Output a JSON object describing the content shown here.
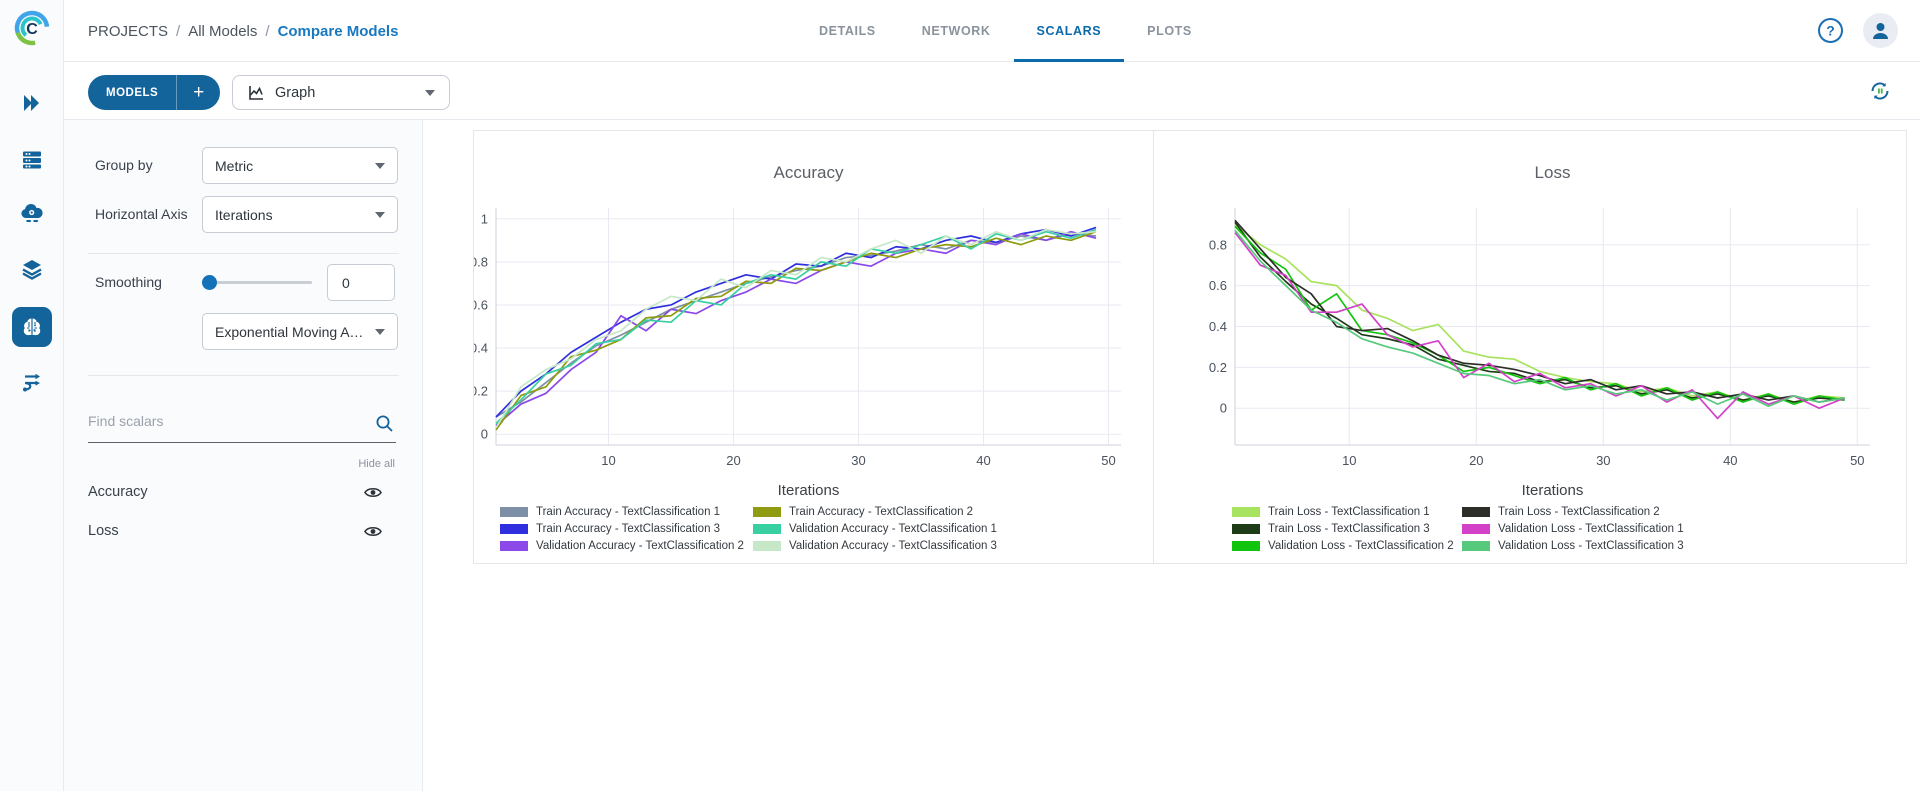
{
  "header": {
    "breadcrumb": [
      "PROJECTS",
      "All Models",
      "Compare Models"
    ],
    "tabs": [
      {
        "label": "DETAILS",
        "active": false
      },
      {
        "label": "NETWORK",
        "active": false
      },
      {
        "label": "SCALARS",
        "active": true
      },
      {
        "label": "PLOTS",
        "active": false
      }
    ]
  },
  "toolbar": {
    "models_label": "MODELS",
    "add_label": "+",
    "view_selector_value": "Graph"
  },
  "rail": {
    "icons": [
      "projects-icon",
      "datasets-icon",
      "pipelines-icon",
      "reports-icon",
      "models-icon",
      "workers-queues-icon"
    ],
    "active_icon": "models-icon"
  },
  "controls": {
    "group_by": {
      "label": "Group by",
      "value": "Metric"
    },
    "horizontal_axis": {
      "label": "Horizontal Axis",
      "value": "Iterations"
    },
    "smoothing": {
      "label": "Smoothing",
      "value": "0",
      "algorithm": "Exponential Moving Av..."
    },
    "find_scalars": {
      "placeholder": "Find scalars"
    },
    "hide_all_label": "Hide all",
    "scalars": [
      {
        "name": "Accuracy"
      },
      {
        "name": "Loss"
      }
    ]
  },
  "colors": {
    "accent_blue": "#14649c",
    "active_tab": "#0b6aa9",
    "breadcrumb_link": "#1879c0",
    "refresh_pause_green": "#4caf50"
  },
  "chart_data": [
    {
      "type": "line",
      "title": "Accuracy",
      "xlabel": "Iterations",
      "legend_position": "below, 2 columns",
      "grid": true,
      "xlim": [
        1,
        51
      ],
      "ylim": [
        -0.05,
        1.05
      ],
      "xticks": [
        10,
        20,
        30,
        40,
        50
      ],
      "yticks": [
        0,
        0.2,
        0.4,
        0.6,
        0.8,
        1
      ],
      "x": [
        1,
        3,
        5,
        7,
        9,
        11,
        13,
        15,
        17,
        19,
        21,
        23,
        25,
        27,
        29,
        31,
        33,
        35,
        37,
        39,
        41,
        43,
        45,
        47,
        49
      ],
      "series": [
        {
          "name": "Train Accuracy - TextClassification 1",
          "color": "#7d90a5",
          "values": [
            0.08,
            0.15,
            0.24,
            0.33,
            0.41,
            0.46,
            0.52,
            0.58,
            0.62,
            0.66,
            0.7,
            0.73,
            0.76,
            0.78,
            0.82,
            0.83,
            0.85,
            0.88,
            0.86,
            0.9,
            0.89,
            0.92,
            0.9,
            0.93,
            0.92
          ]
        },
        {
          "name": "Train Accuracy - TextClassification 3",
          "color": "#2f2fe0",
          "values": [
            0.08,
            0.2,
            0.28,
            0.38,
            0.45,
            0.52,
            0.58,
            0.6,
            0.66,
            0.7,
            0.74,
            0.72,
            0.79,
            0.78,
            0.84,
            0.82,
            0.87,
            0.86,
            0.9,
            0.92,
            0.89,
            0.93,
            0.95,
            0.92,
            0.96
          ]
        },
        {
          "name": "Validation Accuracy - TextClassification 2",
          "color": "#8a49e8",
          "values": [
            0.04,
            0.14,
            0.19,
            0.3,
            0.38,
            0.55,
            0.48,
            0.58,
            0.56,
            0.62,
            0.66,
            0.72,
            0.7,
            0.76,
            0.8,
            0.78,
            0.84,
            0.86,
            0.84,
            0.9,
            0.88,
            0.93,
            0.9,
            0.94,
            0.91
          ]
        },
        {
          "name": "Train Accuracy - TextClassification 2",
          "color": "#8f9c10",
          "values": [
            0.02,
            0.18,
            0.22,
            0.36,
            0.39,
            0.44,
            0.54,
            0.55,
            0.63,
            0.64,
            0.71,
            0.7,
            0.77,
            0.76,
            0.8,
            0.84,
            0.82,
            0.86,
            0.88,
            0.87,
            0.91,
            0.88,
            0.92,
            0.9,
            0.94
          ]
        },
        {
          "name": "Validation Accuracy - TextClassification 1",
          "color": "#38d0a2",
          "values": [
            0.05,
            0.16,
            0.28,
            0.32,
            0.42,
            0.44,
            0.53,
            0.52,
            0.62,
            0.6,
            0.7,
            0.74,
            0.72,
            0.8,
            0.78,
            0.86,
            0.84,
            0.88,
            0.92,
            0.86,
            0.93,
            0.9,
            0.94,
            0.91,
            0.95
          ]
        },
        {
          "name": "Validation Accuracy - TextClassification 3",
          "color": "#c6e8c8",
          "values": [
            0.03,
            0.22,
            0.3,
            0.35,
            0.44,
            0.48,
            0.58,
            0.64,
            0.62,
            0.72,
            0.68,
            0.76,
            0.74,
            0.82,
            0.8,
            0.86,
            0.9,
            0.84,
            0.92,
            0.88,
            0.94,
            0.9,
            0.95,
            0.93,
            0.94
          ]
        }
      ]
    },
    {
      "type": "line",
      "title": "Loss",
      "xlabel": "Iterations",
      "legend_position": "below, 2 columns",
      "grid": true,
      "xlim": [
        1,
        51
      ],
      "ylim": [
        -0.18,
        0.98
      ],
      "xticks": [
        10,
        20,
        30,
        40,
        50
      ],
      "yticks": [
        0,
        0.2,
        0.4,
        0.6,
        0.8
      ],
      "x": [
        1,
        3,
        5,
        7,
        9,
        11,
        13,
        15,
        17,
        19,
        21,
        23,
        25,
        27,
        29,
        31,
        33,
        35,
        37,
        39,
        41,
        43,
        45,
        47,
        49
      ],
      "series": [
        {
          "name": "Train Loss - TextClassification 1",
          "color": "#a7e35e",
          "values": [
            0.9,
            0.8,
            0.73,
            0.62,
            0.6,
            0.48,
            0.44,
            0.38,
            0.41,
            0.28,
            0.25,
            0.24,
            0.18,
            0.15,
            0.13,
            0.12,
            0.08,
            0.1,
            0.06,
            0.08,
            0.04,
            0.07,
            0.03,
            0.06,
            0.05
          ]
        },
        {
          "name": "Train Loss - TextClassification 3",
          "color": "#1d3b16",
          "values": [
            0.91,
            0.74,
            0.62,
            0.51,
            0.44,
            0.36,
            0.34,
            0.31,
            0.24,
            0.21,
            0.18,
            0.17,
            0.13,
            0.14,
            0.1,
            0.11,
            0.07,
            0.09,
            0.05,
            0.07,
            0.04,
            0.06,
            0.03,
            0.05,
            0.04
          ]
        },
        {
          "name": "Validation Loss - TextClassification 2",
          "color": "#12c40e",
          "values": [
            0.89,
            0.76,
            0.68,
            0.48,
            0.56,
            0.38,
            0.36,
            0.32,
            0.26,
            0.18,
            0.2,
            0.16,
            0.12,
            0.15,
            0.09,
            0.12,
            0.06,
            0.1,
            0.04,
            0.08,
            0.03,
            0.07,
            0.02,
            0.06,
            0.04
          ]
        },
        {
          "name": "Train Loss - TextClassification 2",
          "color": "#2e2e29",
          "values": [
            0.92,
            0.78,
            0.64,
            0.56,
            0.4,
            0.38,
            0.39,
            0.33,
            0.26,
            0.22,
            0.21,
            0.19,
            0.16,
            0.12,
            0.14,
            0.09,
            0.11,
            0.07,
            0.08,
            0.05,
            0.07,
            0.04,
            0.06,
            0.03,
            0.05
          ]
        },
        {
          "name": "Validation Loss - TextClassification 1",
          "color": "#d341c8",
          "values": [
            0.86,
            0.7,
            0.65,
            0.47,
            0.47,
            0.51,
            0.36,
            0.3,
            0.33,
            0.15,
            0.22,
            0.13,
            0.17,
            0.1,
            0.12,
            0.06,
            0.11,
            0.03,
            0.09,
            -0.05,
            0.08,
            0.02,
            0.06,
            0.0,
            0.05
          ]
        },
        {
          "name": "Validation Loss - TextClassification 3",
          "color": "#57c97c",
          "values": [
            0.87,
            0.72,
            0.6,
            0.48,
            0.42,
            0.34,
            0.3,
            0.27,
            0.22,
            0.17,
            0.16,
            0.12,
            0.14,
            0.09,
            0.11,
            0.07,
            0.09,
            0.04,
            0.08,
            0.02,
            0.07,
            0.01,
            0.06,
            0.03,
            0.05
          ]
        }
      ]
    }
  ]
}
